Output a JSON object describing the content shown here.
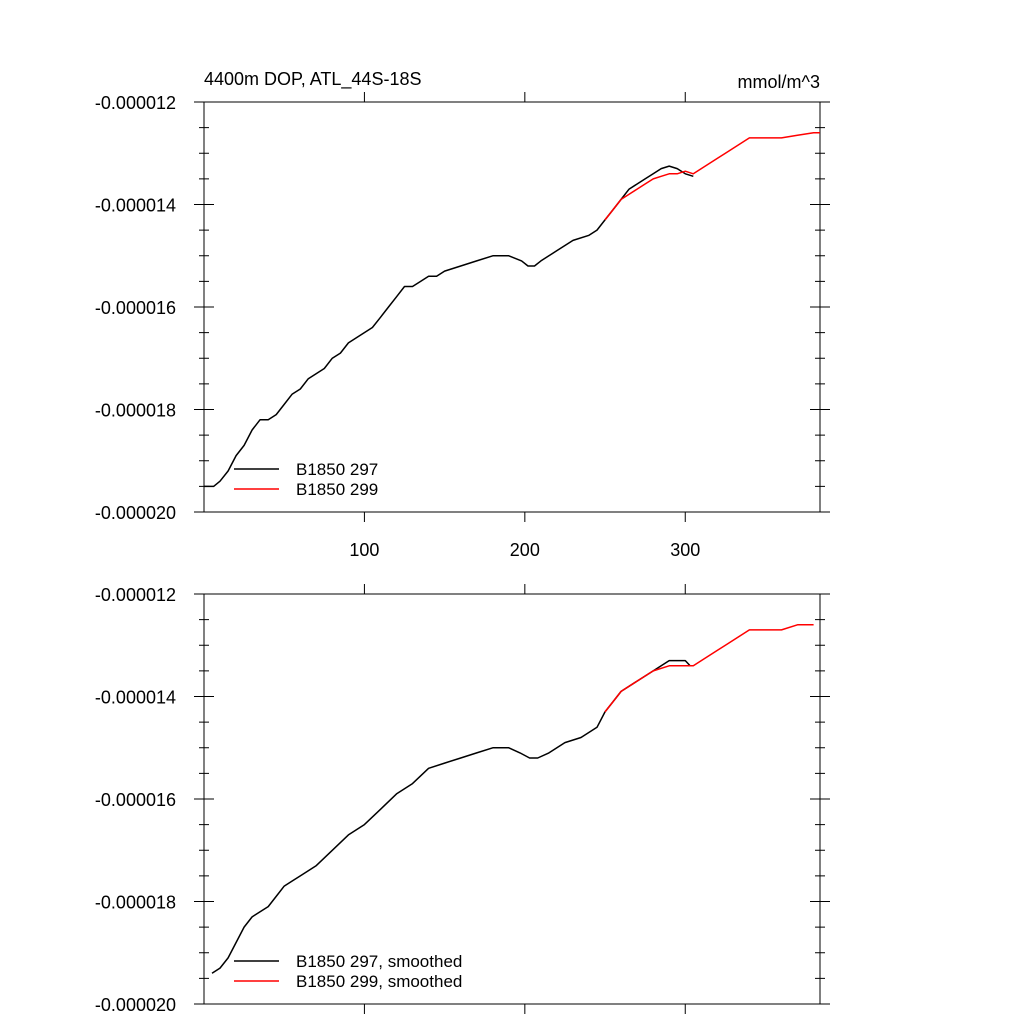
{
  "figure": {
    "title_left": "4400m DOP, ATL_44S-18S",
    "title_right": "mmol/m^3"
  },
  "colors": {
    "series_black": "#000000",
    "series_red": "#ff0000",
    "axis": "#000000"
  },
  "chart_data": [
    {
      "type": "line",
      "title": "4400m DOP, ATL_44S-18S",
      "units": "mmol/m^3",
      "xlim": [
        0,
        384
      ],
      "ylim": [
        -2e-05,
        -1.2e-05
      ],
      "xticks": [
        100,
        200,
        300
      ],
      "xtick_labels": [
        "100",
        "200",
        "300"
      ],
      "yticks": [
        -2e-05,
        -1.8e-05,
        -1.6e-05,
        -1.4e-05,
        -1.2e-05
      ],
      "ytick_labels": [
        "-0.000020",
        "-0.000018",
        "-0.000016",
        "-0.000014",
        "-0.000012"
      ],
      "grid": false,
      "legend_position": "bottom-left",
      "series": [
        {
          "name": "B1850 297",
          "color": "#000000",
          "x": [
            0,
            6,
            10,
            15,
            20,
            25,
            30,
            35,
            40,
            45,
            50,
            55,
            60,
            65,
            70,
            75,
            80,
            85,
            90,
            95,
            100,
            105,
            110,
            115,
            120,
            125,
            130,
            135,
            140,
            145,
            150,
            160,
            170,
            180,
            190,
            198,
            202,
            206,
            210,
            215,
            220,
            230,
            240,
            245,
            250,
            255,
            260,
            265,
            270,
            275,
            280,
            285,
            290,
            295,
            300,
            305
          ],
          "y": [
            -1.95e-05,
            -1.95e-05,
            -1.94e-05,
            -1.92e-05,
            -1.89e-05,
            -1.87e-05,
            -1.84e-05,
            -1.82e-05,
            -1.82e-05,
            -1.81e-05,
            -1.79e-05,
            -1.77e-05,
            -1.76e-05,
            -1.74e-05,
            -1.73e-05,
            -1.72e-05,
            -1.7e-05,
            -1.69e-05,
            -1.67e-05,
            -1.66e-05,
            -1.65e-05,
            -1.64e-05,
            -1.62e-05,
            -1.6e-05,
            -1.58e-05,
            -1.56e-05,
            -1.56e-05,
            -1.55e-05,
            -1.54e-05,
            -1.54e-05,
            -1.53e-05,
            -1.52e-05,
            -1.51e-05,
            -1.5e-05,
            -1.5e-05,
            -1.51e-05,
            -1.52e-05,
            -1.52e-05,
            -1.51e-05,
            -1.5e-05,
            -1.49e-05,
            -1.47e-05,
            -1.46e-05,
            -1.45e-05,
            -1.43e-05,
            -1.41e-05,
            -1.39e-05,
            -1.37e-05,
            -1.36e-05,
            -1.35e-05,
            -1.34e-05,
            -1.33e-05,
            -1.325e-05,
            -1.33e-05,
            -1.34e-05,
            -1.345e-05
          ]
        },
        {
          "name": "B1850 299",
          "color": "#ff0000",
          "x": [
            250,
            255,
            260,
            265,
            270,
            275,
            280,
            285,
            290,
            295,
            300,
            305,
            310,
            315,
            320,
            325,
            330,
            335,
            340,
            350,
            360,
            370,
            380,
            384
          ],
          "y": [
            -1.43e-05,
            -1.41e-05,
            -1.39e-05,
            -1.38e-05,
            -1.37e-05,
            -1.36e-05,
            -1.35e-05,
            -1.345e-05,
            -1.34e-05,
            -1.34e-05,
            -1.335e-05,
            -1.34e-05,
            -1.33e-05,
            -1.32e-05,
            -1.31e-05,
            -1.3e-05,
            -1.29e-05,
            -1.28e-05,
            -1.27e-05,
            -1.27e-05,
            -1.27e-05,
            -1.265e-05,
            -1.26e-05,
            -1.26e-05
          ]
        }
      ]
    },
    {
      "type": "line",
      "xlim": [
        0,
        384
      ],
      "ylim": [
        -2e-05,
        -1.2e-05
      ],
      "xticks": [
        100,
        200,
        300
      ],
      "yticks": [
        -2e-05,
        -1.8e-05,
        -1.6e-05,
        -1.4e-05,
        -1.2e-05
      ],
      "ytick_labels": [
        "-0.000020",
        "-0.000018",
        "-0.000016",
        "-0.000014",
        "-0.000012"
      ],
      "grid": false,
      "legend_position": "bottom-left",
      "series": [
        {
          "name": "B1850 297, smoothed",
          "color": "#000000",
          "x": [
            5,
            10,
            15,
            20,
            25,
            30,
            35,
            40,
            45,
            50,
            55,
            60,
            70,
            80,
            90,
            100,
            110,
            120,
            130,
            140,
            150,
            160,
            170,
            180,
            190,
            197,
            203,
            208,
            215,
            225,
            235,
            245,
            250,
            255,
            260,
            270,
            280,
            290,
            295,
            300,
            303
          ],
          "y": [
            -1.94e-05,
            -1.93e-05,
            -1.91e-05,
            -1.88e-05,
            -1.85e-05,
            -1.83e-05,
            -1.82e-05,
            -1.81e-05,
            -1.79e-05,
            -1.77e-05,
            -1.76e-05,
            -1.75e-05,
            -1.73e-05,
            -1.7e-05,
            -1.67e-05,
            -1.65e-05,
            -1.62e-05,
            -1.59e-05,
            -1.57e-05,
            -1.54e-05,
            -1.53e-05,
            -1.52e-05,
            -1.51e-05,
            -1.5e-05,
            -1.5e-05,
            -1.51e-05,
            -1.52e-05,
            -1.52e-05,
            -1.51e-05,
            -1.49e-05,
            -1.48e-05,
            -1.46e-05,
            -1.43e-05,
            -1.41e-05,
            -1.39e-05,
            -1.37e-05,
            -1.35e-05,
            -1.33e-05,
            -1.33e-05,
            -1.33e-05,
            -1.34e-05
          ]
        },
        {
          "name": "B1850 299, smoothed",
          "color": "#ff0000",
          "x": [
            250,
            255,
            260,
            270,
            280,
            290,
            295,
            300,
            305,
            310,
            315,
            320,
            325,
            330,
            335,
            340,
            350,
            360,
            370,
            375,
            380
          ],
          "y": [
            -1.43e-05,
            -1.41e-05,
            -1.39e-05,
            -1.37e-05,
            -1.35e-05,
            -1.34e-05,
            -1.34e-05,
            -1.34e-05,
            -1.34e-05,
            -1.33e-05,
            -1.32e-05,
            -1.31e-05,
            -1.3e-05,
            -1.29e-05,
            -1.28e-05,
            -1.27e-05,
            -1.27e-05,
            -1.27e-05,
            -1.26e-05,
            -1.26e-05,
            -1.26e-05
          ]
        }
      ]
    }
  ]
}
